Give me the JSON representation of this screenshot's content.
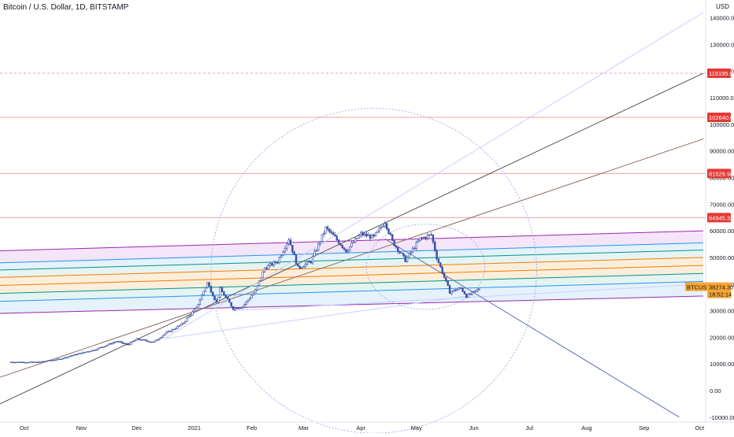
{
  "title": "Bitcoin / U.S. Dollar, 1D, BITSTAMP",
  "currency": "USD",
  "chart_data": {
    "type": "candlestick",
    "ylim": [
      -10000,
      145000
    ],
    "y_ticks": [
      -10000,
      0,
      10000,
      20000,
      30000,
      40000,
      50000,
      60000,
      70000,
      80000,
      90000,
      100000,
      110000,
      120000,
      130000,
      140000
    ],
    "y_tick_labels": [
      "-10000.00",
      "0.00",
      "10000.00",
      "20000.00",
      "30000.00",
      "40000.00",
      "50000.00",
      "60000.00",
      "70000.00",
      "80000.00",
      "90000.00",
      "100000.00",
      "110000.00",
      "120000.00",
      "130000.00",
      "140000.00"
    ],
    "x_tick_labels": [
      "Oct",
      "Nov",
      "Dec",
      "2021",
      "Feb",
      "Mar",
      "Apr",
      "May",
      "Jun",
      "Jul",
      "Aug",
      "Sep",
      "Oct"
    ],
    "price_path": [
      [
        "2020-09-24",
        10700
      ],
      [
        "2020-10-08",
        10600
      ],
      [
        "2020-10-20",
        11800
      ],
      [
        "2020-10-28",
        13400
      ],
      [
        "2020-11-08",
        15300
      ],
      [
        "2020-11-20",
        18500
      ],
      [
        "2020-11-26",
        17200
      ],
      [
        "2020-12-01",
        19300
      ],
      [
        "2020-12-10",
        18200
      ],
      [
        "2020-12-16",
        21300
      ],
      [
        "2020-12-25",
        24700
      ],
      [
        "2021-01-02",
        31000
      ],
      [
        "2021-01-08",
        40500
      ],
      [
        "2021-01-13",
        33000
      ],
      [
        "2021-01-15",
        38000
      ],
      [
        "2021-01-22",
        30800
      ],
      [
        "2021-01-27",
        31500
      ],
      [
        "2021-02-03",
        37500
      ],
      [
        "2021-02-08",
        46000
      ],
      [
        "2021-02-15",
        48500
      ],
      [
        "2021-02-21",
        57000
      ],
      [
        "2021-02-26",
        46000
      ],
      [
        "2021-03-05",
        48500
      ],
      [
        "2021-03-13",
        61000
      ],
      [
        "2021-03-18",
        57500
      ],
      [
        "2021-03-24",
        52500
      ],
      [
        "2021-04-01",
        58800
      ],
      [
        "2021-04-08",
        57500
      ],
      [
        "2021-04-14",
        63500
      ],
      [
        "2021-04-18",
        56000
      ],
      [
        "2021-04-25",
        49000
      ],
      [
        "2021-05-03",
        57000
      ],
      [
        "2021-05-09",
        58500
      ],
      [
        "2021-05-12",
        50000
      ],
      [
        "2021-05-19",
        37000
      ],
      [
        "2021-05-25",
        38500
      ],
      [
        "2021-05-28",
        35500
      ],
      [
        "2021-06-01",
        36800
      ],
      [
        "2021-06-04",
        38274
      ]
    ],
    "horizontal_levels": [
      {
        "label": "119195.00",
        "value": 119195,
        "color": "#e53935",
        "style": "dashed"
      },
      {
        "label": "102640.00",
        "value": 102640,
        "color": "#e53935",
        "style": "solid"
      },
      {
        "label": "81529.94",
        "value": 81529.94,
        "color": "#e53935",
        "style": "solid"
      },
      {
        "label": "64945.32",
        "value": 64945.32,
        "color": "#e53935",
        "style": "solid"
      }
    ],
    "current_price": {
      "symbol": "BTCUSD",
      "value": "38274.30",
      "countdown": "18:52:14",
      "color": "#f7a632"
    },
    "channel": {
      "start_date": "2020-09-18",
      "end_date": "2021-10-03",
      "levels": [
        {
          "start": 52500,
          "end": 60000,
          "color": "#9c27b0"
        },
        {
          "start": 48000,
          "end": 55500,
          "color": "#2196f3"
        },
        {
          "start": 45300,
          "end": 52800,
          "color": "#009688"
        },
        {
          "start": 42500,
          "end": 50000,
          "color": "#f57c00"
        },
        {
          "start": 39500,
          "end": 47000,
          "color": "#f57c00"
        },
        {
          "start": 36500,
          "end": 44000,
          "color": "#009688"
        },
        {
          "start": 33500,
          "end": 41000,
          "color": "#2196f3"
        },
        {
          "start": 29000,
          "end": 35500,
          "color": "#9c27b0"
        }
      ]
    },
    "trend_lines": [
      {
        "from": [
          "2020-09-18",
          -5000
        ],
        "to": [
          "2021-10-03",
          119195
        ],
        "color": "#555555"
      },
      {
        "from": [
          "2020-09-18",
          5000
        ],
        "to": [
          "2021-10-03",
          94500
        ],
        "color": "#8d6e63"
      },
      {
        "from": [
          "2020-12-16",
          19500
        ],
        "to": [
          "2021-10-03",
          142000
        ],
        "color": "#c8d0ff"
      },
      {
        "from": [
          "2020-12-16",
          19500
        ],
        "to": [
          "2021-05-28",
          35500
        ],
        "color": "#c8d0ff"
      },
      {
        "from": [
          "2021-01-22",
          30000
        ],
        "to": [
          "2021-10-03",
          40000
        ],
        "color": "#c8d0ff"
      },
      {
        "from": [
          "2021-04-14",
          57000
        ],
        "to": [
          "2021-09-20",
          -10000
        ],
        "color": "#5c6bc0"
      }
    ],
    "circles": [
      {
        "center": [
          "2021-04-08",
          45000
        ],
        "radius_days": 88,
        "radius_value": 61000
      },
      {
        "center": [
          "2021-05-06",
          46500
        ],
        "radius_days": 32,
        "radius_value": 16000
      }
    ]
  }
}
